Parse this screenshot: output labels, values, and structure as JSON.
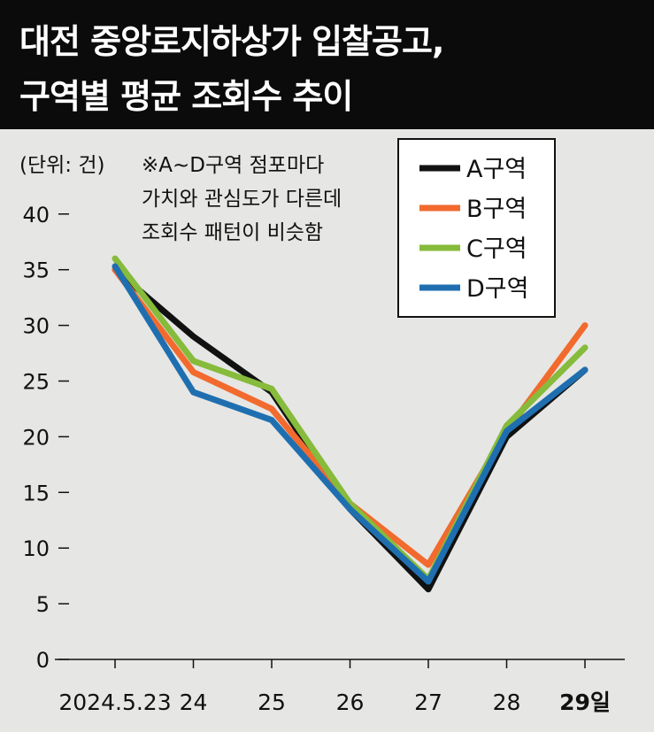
{
  "header": {
    "title_line1": "대전 중앙로지하상가 입찰공고,",
    "title_line2": "구역별 평균 조회수 추이"
  },
  "unit_label": "(단위: 건)",
  "note": {
    "line1": "※A~D구역 점포마다",
    "line2": "가치와 관심도가 다른데",
    "line3": "조회수 패턴이 비슷함"
  },
  "chart_data": {
    "type": "line",
    "categories": [
      "2024.5.23",
      "24",
      "25",
      "26",
      "27",
      "28",
      "29일"
    ],
    "ylim": [
      0,
      40
    ],
    "yticks": [
      0,
      5,
      10,
      15,
      20,
      25,
      30,
      35,
      40
    ],
    "grid": false,
    "legend_position": "top-right",
    "series": [
      {
        "name": "A구역",
        "color": "#111111",
        "values": [
          35,
          29,
          24,
          13.5,
          6.3,
          20,
          26
        ]
      },
      {
        "name": "B구역",
        "color": "#f26a2e",
        "values": [
          35,
          25.8,
          22.5,
          14,
          8.5,
          20.5,
          30
        ]
      },
      {
        "name": "C구역",
        "color": "#86bb3b",
        "values": [
          36,
          26.8,
          24.3,
          14,
          7.2,
          21,
          28
        ]
      },
      {
        "name": "D구역",
        "color": "#1f6fb0",
        "values": [
          35.3,
          24,
          21.5,
          13.5,
          7,
          20.5,
          26
        ]
      }
    ]
  }
}
